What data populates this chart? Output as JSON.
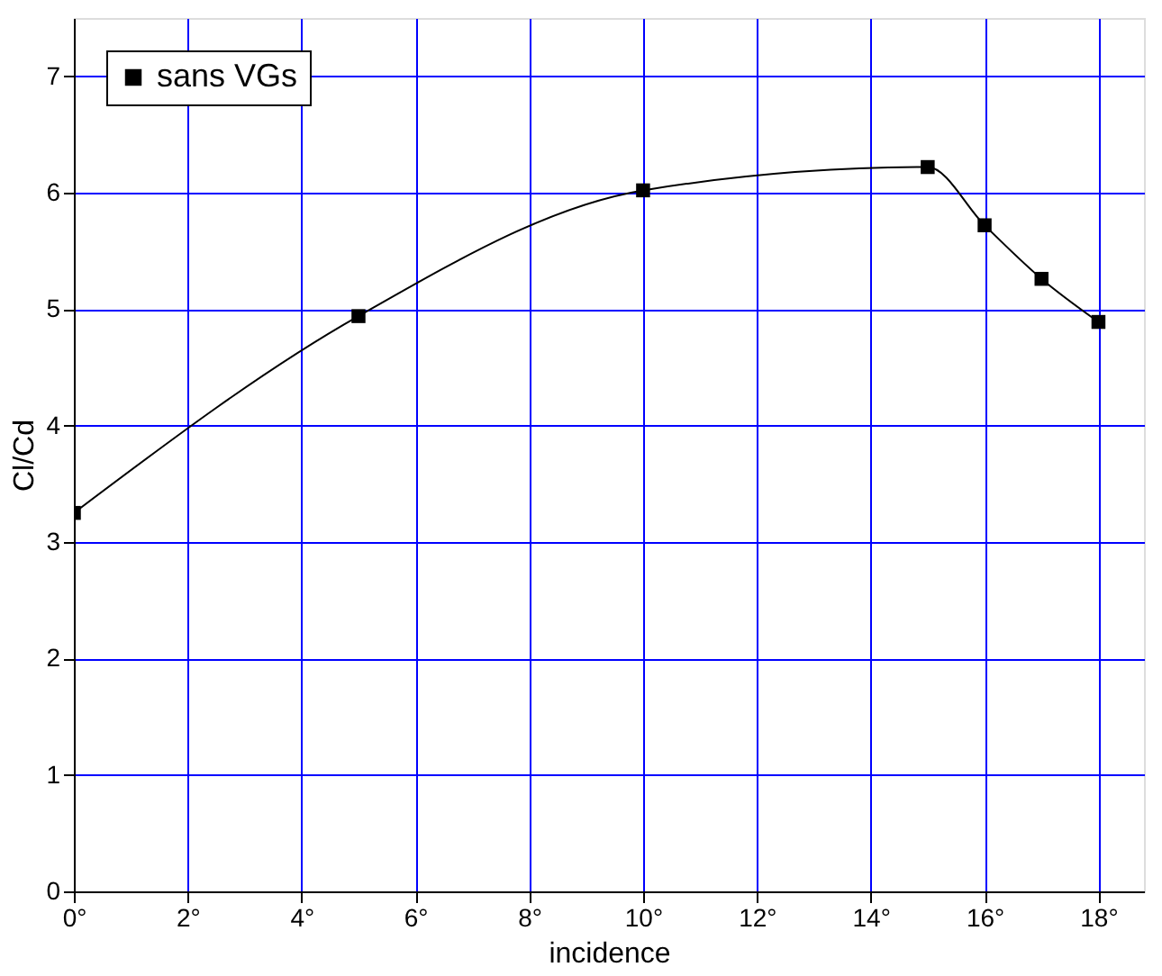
{
  "chart_data": {
    "type": "line",
    "xlabel": "incidence",
    "ylabel": "Cl/Cd",
    "x": [
      0,
      5,
      10,
      15,
      16,
      17,
      18
    ],
    "series": [
      {
        "name": "sans VGs",
        "color": "#000000",
        "values": [
          3.25,
          4.94,
          6.02,
          6.22,
          5.72,
          5.26,
          4.89
        ]
      }
    ],
    "xlim": [
      0,
      18.8
    ],
    "xticks": [
      {
        "value": 0,
        "label": "0°"
      },
      {
        "value": 2,
        "label": "2°"
      },
      {
        "value": 4,
        "label": "4°"
      },
      {
        "value": 6,
        "label": "6°"
      },
      {
        "value": 8,
        "label": "8°"
      },
      {
        "value": 10,
        "label": "10°"
      },
      {
        "value": 12,
        "label": "12°"
      },
      {
        "value": 14,
        "label": "14°"
      },
      {
        "value": 16,
        "label": "16°"
      },
      {
        "value": 18,
        "label": "18°"
      }
    ],
    "ylim": [
      0,
      7.5
    ],
    "yticks": [
      0,
      1,
      2,
      3,
      4,
      5,
      6,
      7
    ],
    "grid": true,
    "legend": "top left",
    "marker": "square",
    "line_style": "solid"
  }
}
